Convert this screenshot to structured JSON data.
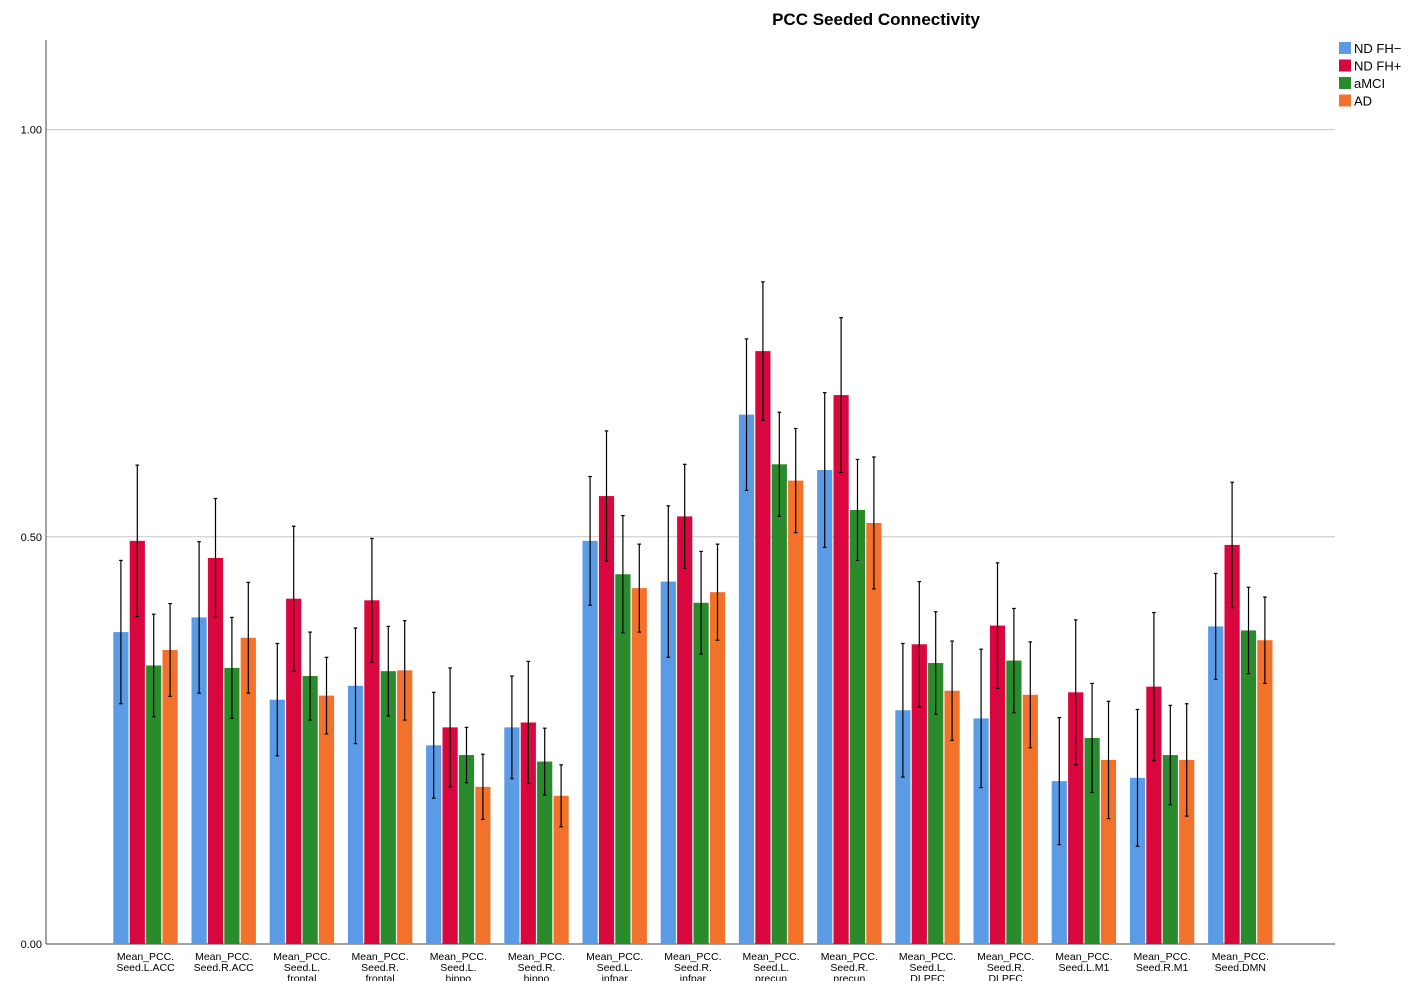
{
  "chart_data": {
    "type": "bar",
    "title": "PCC Seeded Connectivity",
    "xlabel": "",
    "ylabel": "",
    "ylim": [
      0,
      1.11
    ],
    "yticks": [
      "0.00",
      "0.50",
      "1.00"
    ],
    "grid": true,
    "legend_position": "top-right",
    "categories": [
      [
        "Mean_PCC.",
        "Seed.L.ACC"
      ],
      [
        "Mean_PCC.",
        "Seed.R.ACC"
      ],
      [
        "Mean_PCC.",
        "Seed.L.",
        "frontal"
      ],
      [
        "Mean_PCC.",
        "Seed.R.",
        "frontal"
      ],
      [
        "Mean_PCC.",
        "Seed.L.",
        "hippo"
      ],
      [
        "Mean_PCC.",
        "Seed.R.",
        "hippo"
      ],
      [
        "Mean_PCC.",
        "Seed.L.",
        "infpar"
      ],
      [
        "Mean_PCC.",
        "Seed.R.",
        "infpar"
      ],
      [
        "Mean_PCC.",
        "Seed.L.",
        "precun"
      ],
      [
        "Mean_PCC.",
        "Seed.R.",
        "precun"
      ],
      [
        "Mean_PCC.",
        "Seed.L.",
        "DLPFC"
      ],
      [
        "Mean_PCC.",
        "Seed.R.",
        "DLPFC"
      ],
      [
        "Mean_PCC.",
        "Seed.L.M1"
      ],
      [
        "Mean_PCC.",
        "Seed.R.M1"
      ],
      [
        "Mean_PCC.",
        "Seed.DMN"
      ]
    ],
    "series": [
      {
        "name": "ND FH−",
        "color": "#5b9be6",
        "values": [
          0.383,
          0.401,
          0.3,
          0.317,
          0.244,
          0.266,
          0.495,
          0.445,
          0.65,
          0.582,
          0.287,
          0.277,
          0.2,
          0.204,
          0.39
        ],
        "error": [
          0.088,
          0.093,
          0.069,
          0.071,
          0.065,
          0.063,
          0.079,
          0.093,
          0.093,
          0.095,
          0.082,
          0.085,
          0.078,
          0.084,
          0.065
        ]
      },
      {
        "name": "ND FH+",
        "color": "#d8073d",
        "values": [
          0.495,
          0.474,
          0.424,
          0.422,
          0.266,
          0.272,
          0.55,
          0.525,
          0.728,
          0.674,
          0.368,
          0.391,
          0.309,
          0.316,
          0.49
        ],
        "error": [
          0.093,
          0.073,
          0.089,
          0.076,
          0.073,
          0.075,
          0.08,
          0.064,
          0.085,
          0.095,
          0.077,
          0.077,
          0.089,
          0.091,
          0.077
        ]
      },
      {
        "name": "aMCI",
        "color": "#2a8b2c",
        "values": [
          0.342,
          0.339,
          0.329,
          0.335,
          0.232,
          0.224,
          0.454,
          0.419,
          0.589,
          0.533,
          0.345,
          0.348,
          0.253,
          0.232,
          0.385
        ],
        "error": [
          0.063,
          0.062,
          0.054,
          0.055,
          0.034,
          0.041,
          0.072,
          0.063,
          0.064,
          0.062,
          0.063,
          0.064,
          0.067,
          0.061,
          0.053
        ]
      },
      {
        "name": "AD",
        "color": "#f2712b",
        "values": [
          0.361,
          0.376,
          0.305,
          0.336,
          0.193,
          0.182,
          0.437,
          0.432,
          0.569,
          0.517,
          0.311,
          0.306,
          0.226,
          0.226,
          0.373
        ],
        "error": [
          0.057,
          0.068,
          0.047,
          0.061,
          0.04,
          0.038,
          0.054,
          0.059,
          0.064,
          0.081,
          0.061,
          0.065,
          0.072,
          0.069,
          0.053
        ]
      }
    ]
  }
}
